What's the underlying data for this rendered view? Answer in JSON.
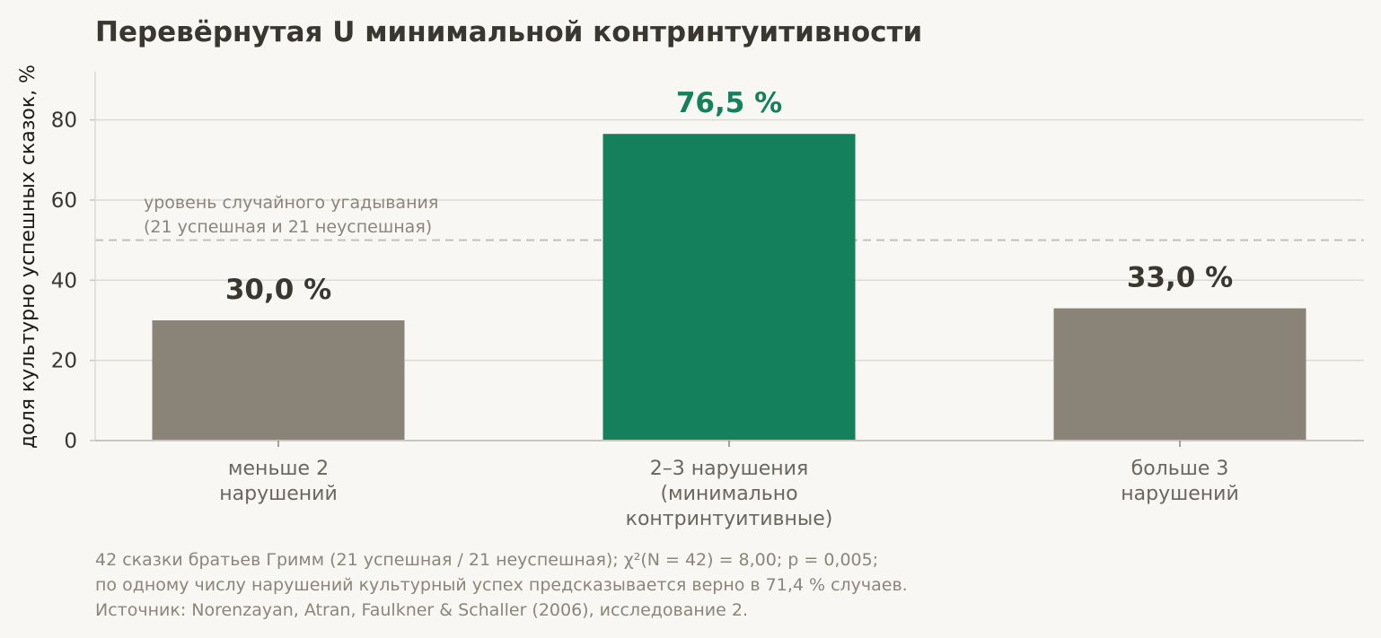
{
  "chart_data": {
    "type": "bar",
    "title": "Перевёрнутая U минимальной контринтуитивности",
    "ylabel": "доля культурно успешных сказок, %",
    "ylim": [
      0,
      92
    ],
    "yticks": [
      "0",
      "20",
      "40",
      "60",
      "80"
    ],
    "ytick_values": [
      0,
      20,
      40,
      60,
      80
    ],
    "categories": [
      [
        "меньше 2",
        "нарушений"
      ],
      [
        "2–3 нарушения",
        "(минимально",
        "контринтуитивные)"
      ],
      [
        "больше 3",
        "нарушений"
      ]
    ],
    "values": [
      30.0,
      76.5,
      33.0
    ],
    "value_labels": [
      "30,0 %",
      "76,5 %",
      "33,0 %"
    ],
    "bar_colors": [
      "#8a8377",
      "#14805c",
      "#8a8377"
    ],
    "value_label_colors": [
      "#3a3630",
      "#14805c",
      "#3a3630"
    ],
    "reference_line": {
      "value": 50,
      "label": [
        "уровень случайного угадывания",
        "(21 успешная и 21 неуспешная)"
      ]
    },
    "grid": true
  },
  "footer": {
    "line1": "42 сказки братьев Гримм (21 успешная / 21 неуспешная); χ²(N = 42) = 8,00; p = 0,005;",
    "line2": "по одному числу нарушений культурный успех предсказывается верно в 71,4 % случаев.",
    "line3": "Источник: Norenzayan, Atran, Faulkner & Schaller (2006), исследование 2."
  }
}
